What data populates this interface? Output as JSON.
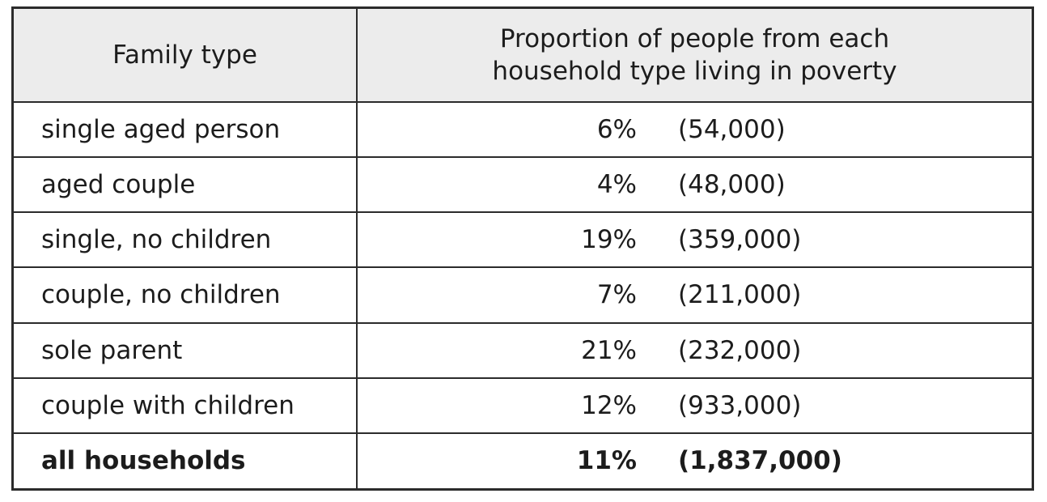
{
  "chart_data": {
    "type": "table",
    "columns": [
      "Family type",
      "Proportion of people from each household type living in poverty"
    ],
    "header_lines": [
      "Proportion of people from each",
      "household type living in poverty"
    ],
    "rows": [
      {
        "family_type": "single aged person",
        "percent": "6%",
        "count": "(54,000)"
      },
      {
        "family_type": "aged couple",
        "percent": "4%",
        "count": "(48,000)"
      },
      {
        "family_type": "single, no children",
        "percent": "19%",
        "count": "(359,000)"
      },
      {
        "family_type": "couple, no children",
        "percent": "7%",
        "count": "(211,000)"
      },
      {
        "family_type": "sole parent",
        "percent": "21%",
        "count": "(232,000)"
      },
      {
        "family_type": "couple with children",
        "percent": "12%",
        "count": "(933,000)"
      }
    ],
    "total": {
      "family_type": "all households",
      "percent": "11%",
      "count": "(1,837,000)"
    }
  },
  "colors": {
    "header_background": "#ececec",
    "border": "#2b2b2b",
    "text": "#1c1c1c"
  }
}
